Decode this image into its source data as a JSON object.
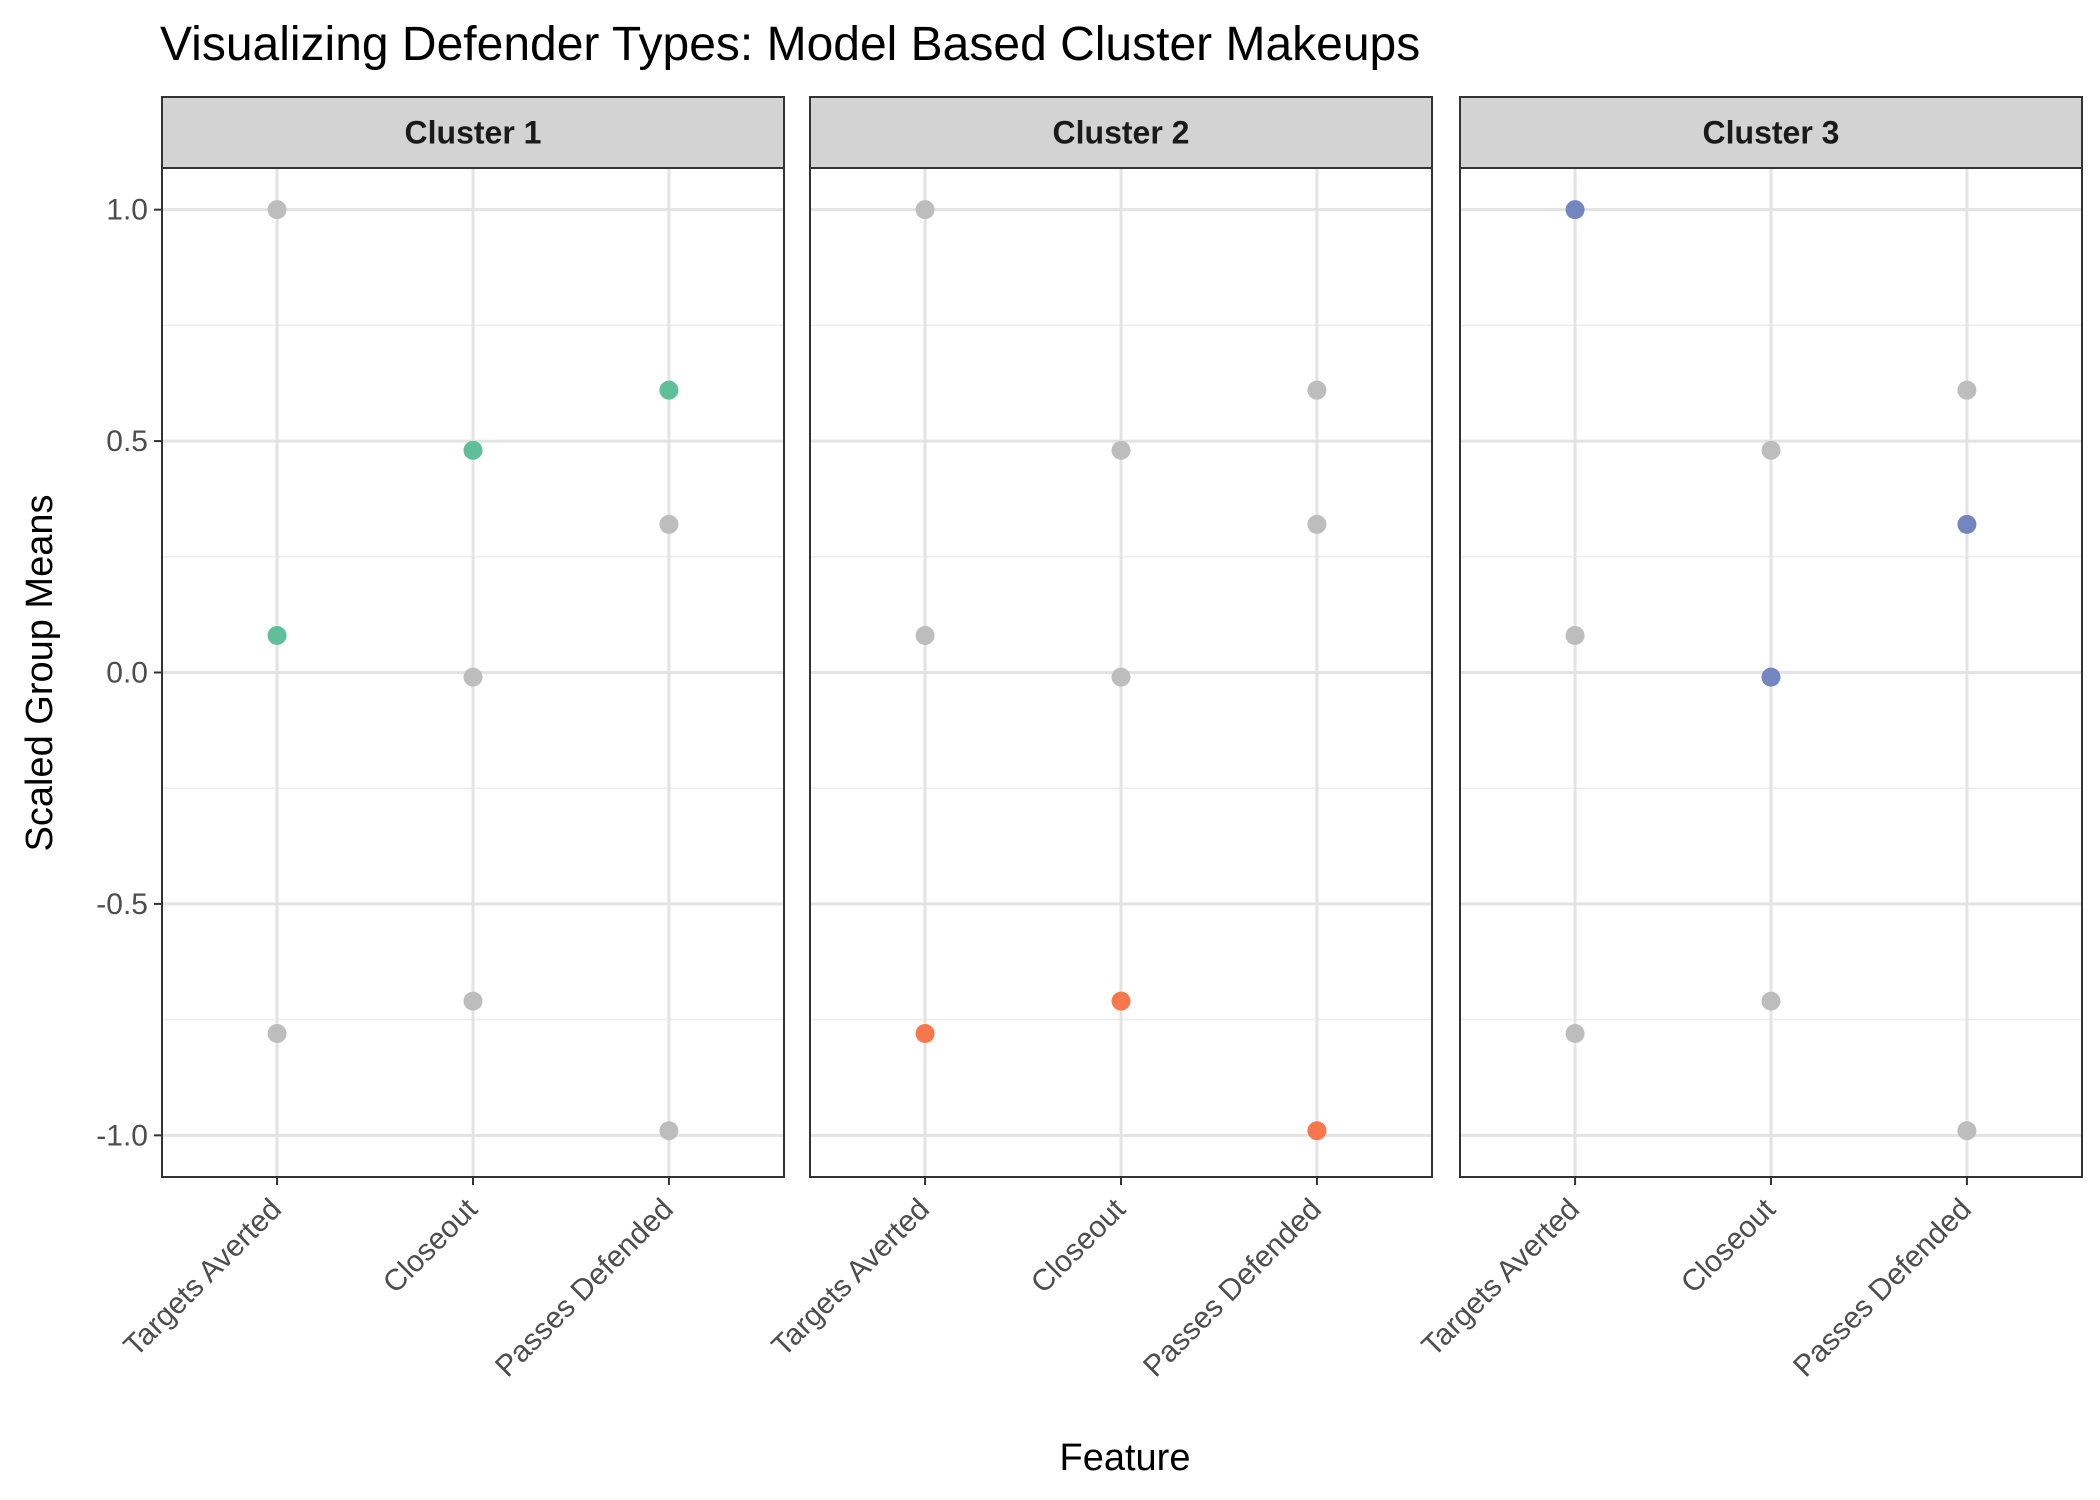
{
  "chart_data": {
    "type": "scatter",
    "title": "Visualizing Defender Types: Model Based Cluster Makeups",
    "xlabel": "Feature",
    "ylabel": "Scaled Group Means",
    "categories": [
      "Targets Averted",
      "Closeout",
      "Passes Defended"
    ],
    "ylim": [
      -1.09,
      1.09
    ],
    "yticks": [
      1.0,
      0.5,
      0.0,
      -0.5,
      -1.0
    ],
    "ytick_labels": [
      "1.0",
      "0.5",
      "0.0",
      "-0.5",
      "-1.0"
    ],
    "grid": true,
    "background_point_color": "#bdbdbd",
    "panels": [
      {
        "label": "Cluster 1",
        "color": "#5fbf99",
        "values": [
          0.08,
          0.48,
          0.61
        ]
      },
      {
        "label": "Cluster 2",
        "color": "#f8774d",
        "values": [
          -0.78,
          -0.71,
          -0.99
        ]
      },
      {
        "label": "Cluster 3",
        "color": "#7486bf",
        "values": [
          1.0,
          -0.01,
          0.32
        ]
      }
    ]
  }
}
